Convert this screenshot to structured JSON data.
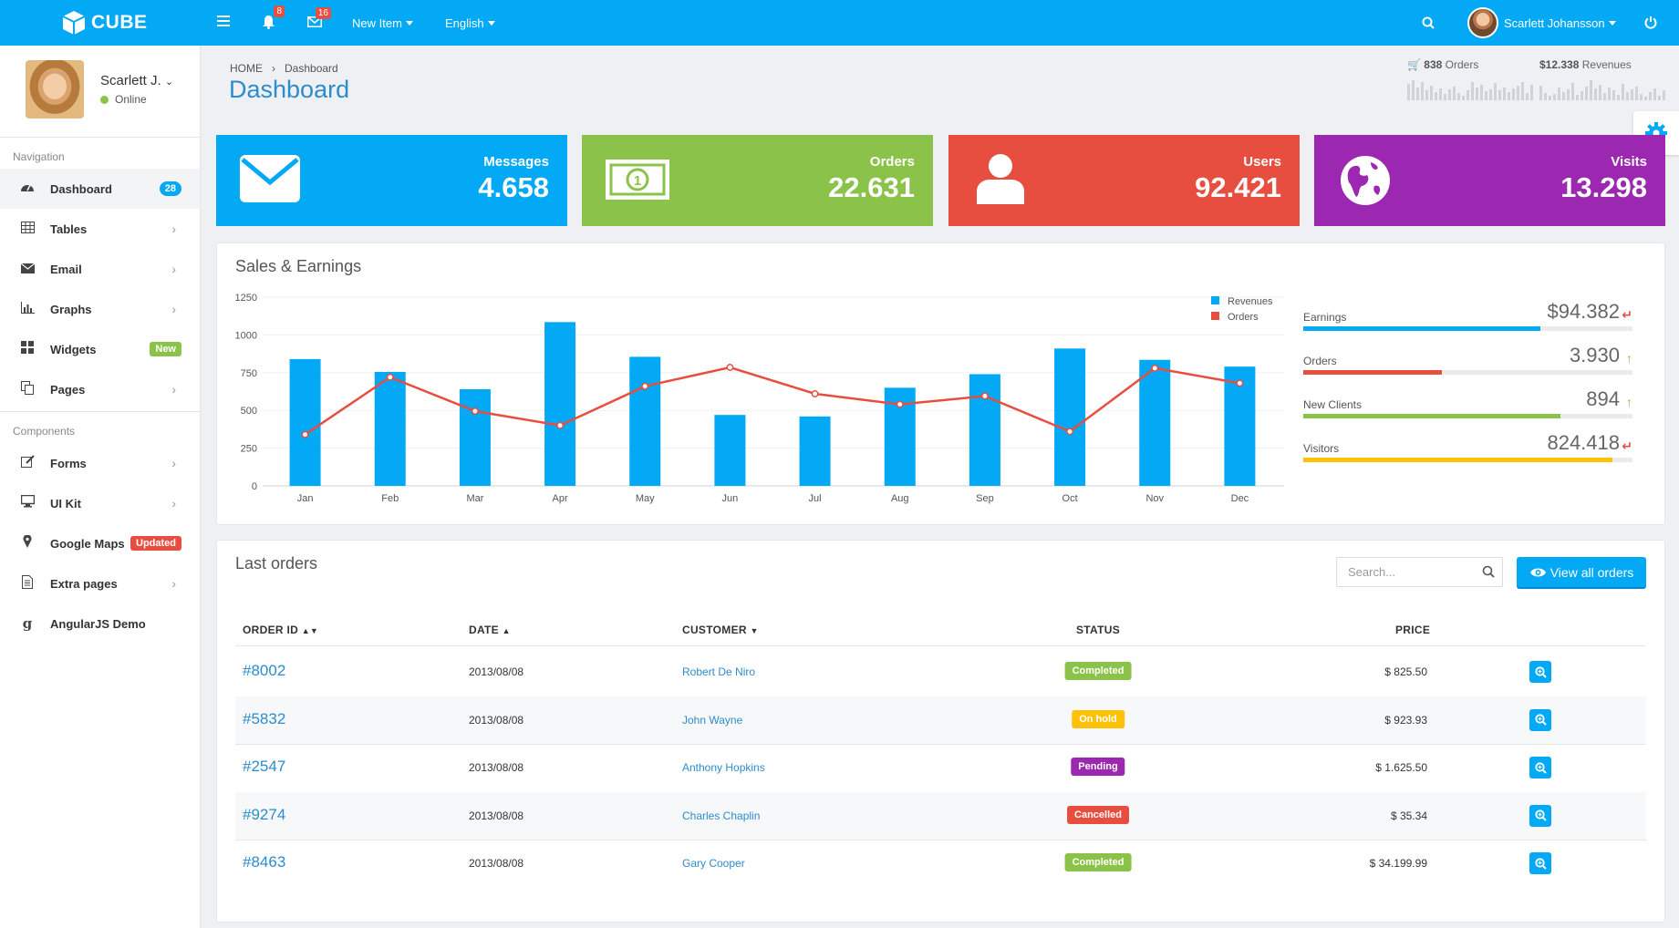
{
  "app": {
    "brand": "CUBE"
  },
  "topbar": {
    "notifications_count": "8",
    "messages_count": "16",
    "new_item_label": "New Item",
    "language_label": "English",
    "user_name": "Scarlett Johansson"
  },
  "sidebar": {
    "user_name": "Scarlett J.",
    "status": "Online",
    "nav_heading": "Navigation",
    "components_heading": "Components",
    "nav_items": [
      {
        "label": "Dashboard",
        "badge": "28",
        "icon": "dashboard-icon"
      },
      {
        "label": "Tables",
        "icon": "table-icon"
      },
      {
        "label": "Email",
        "icon": "envelope-icon"
      },
      {
        "label": "Graphs",
        "icon": "bar-chart-icon"
      },
      {
        "label": "Widgets",
        "badge": "New",
        "icon": "grid-icon"
      },
      {
        "label": "Pages",
        "icon": "copy-icon"
      }
    ],
    "component_items": [
      {
        "label": "Forms",
        "icon": "edit-icon"
      },
      {
        "label": "UI Kit",
        "icon": "desktop-icon"
      },
      {
        "label": "Google Maps",
        "badge": "Updated",
        "icon": "map-marker-icon"
      },
      {
        "label": "Extra pages",
        "icon": "file-icon"
      },
      {
        "label": "AngularJS Demo",
        "icon": "angular-icon"
      }
    ]
  },
  "header": {
    "breadcrumb_home": "HOME",
    "breadcrumb_current": "Dashboard",
    "title": "Dashboard",
    "orders_summary_value": "838",
    "orders_summary_label": "Orders",
    "revenues_summary_value": "$12.338",
    "revenues_summary_label": "Revenues"
  },
  "stats": [
    {
      "label": "Messages",
      "value": "4.658",
      "color": "#03a9f4",
      "icon": "envelope-icon"
    },
    {
      "label": "Orders",
      "value": "22.631",
      "color": "#8bc34a",
      "icon": "money-icon"
    },
    {
      "label": "Users",
      "value": "92.421",
      "color": "#e84e40",
      "icon": "user-icon"
    },
    {
      "label": "Visits",
      "value": "13.298",
      "color": "#9c27b0",
      "icon": "globe-icon"
    }
  ],
  "sales": {
    "title": "Sales & Earnings",
    "kpis": [
      {
        "label": "Earnings",
        "value": "$94.382",
        "trend": "down",
        "fill": 0.72,
        "color": "#03a9f4"
      },
      {
        "label": "Orders",
        "value": "3.930",
        "trend": "up",
        "fill": 0.42,
        "color": "#e84e40"
      },
      {
        "label": "New Clients",
        "value": "894",
        "trend": "up",
        "fill": 0.78,
        "color": "#8bc34a"
      },
      {
        "label": "Visitors",
        "value": "824.418",
        "trend": "down",
        "fill": 0.94,
        "color": "#ffc107"
      }
    ]
  },
  "chart_data": {
    "type": "bar",
    "categories": [
      "Jan",
      "Feb",
      "Mar",
      "Apr",
      "May",
      "Jun",
      "Jul",
      "Aug",
      "Sep",
      "Oct",
      "Nov",
      "Dec"
    ],
    "series": [
      {
        "name": "Revenues",
        "type": "bar",
        "color": "#03a9f4",
        "values": [
          840,
          755,
          640,
          1085,
          855,
          470,
          460,
          650,
          740,
          910,
          835,
          790
        ]
      },
      {
        "name": "Orders",
        "type": "line",
        "color": "#e84e40",
        "values": [
          340,
          720,
          495,
          400,
          660,
          785,
          610,
          540,
          595,
          360,
          780,
          680
        ]
      }
    ],
    "yticks": [
      "0",
      "250",
      "500",
      "750",
      "1000",
      "1250"
    ],
    "ylim": [
      0,
      1250
    ],
    "grid": true,
    "legend_position": "top-right"
  },
  "orders": {
    "title": "Last orders",
    "search_placeholder": "Search...",
    "view_all_label": "View all orders",
    "columns": [
      "ORDER ID",
      "DATE",
      "CUSTOMER",
      "STATUS",
      "PRICE"
    ],
    "rows": [
      {
        "id": "#8002",
        "date": "2013/08/08",
        "customer": "Robert De Niro",
        "status": "Completed",
        "status_color": "#8bc34a",
        "price": "$ 825.50"
      },
      {
        "id": "#5832",
        "date": "2013/08/08",
        "customer": "John Wayne",
        "status": "On hold",
        "status_color": "#ffc107",
        "price": "$ 923.93"
      },
      {
        "id": "#2547",
        "date": "2013/08/08",
        "customer": "Anthony Hopkins",
        "status": "Pending",
        "status_color": "#9c27b0",
        "price": "$ 1.625.50"
      },
      {
        "id": "#9274",
        "date": "2013/08/08",
        "customer": "Charles Chaplin",
        "status": "Cancelled",
        "status_color": "#e84e40",
        "price": "$ 35.34"
      },
      {
        "id": "#8463",
        "date": "2013/08/08",
        "customer": "Gary Cooper",
        "status": "Completed",
        "status_color": "#8bc34a",
        "price": "$ 34.199.99"
      }
    ]
  }
}
